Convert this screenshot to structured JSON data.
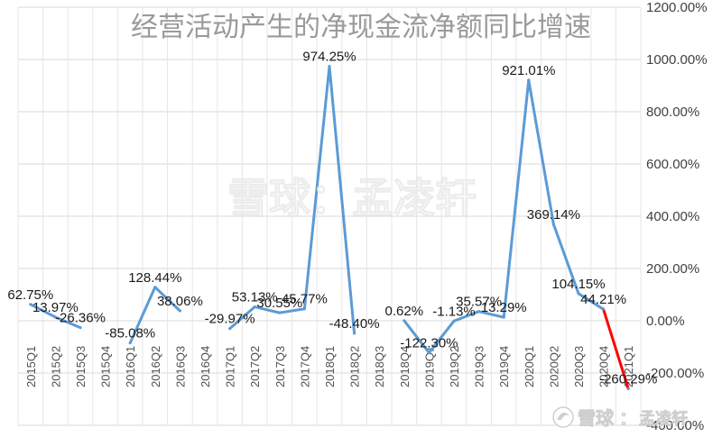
{
  "chart_data": {
    "type": "line",
    "title": "经营活动产生的净现金流净额同比增速",
    "categories": [
      "2015Q1",
      "2015Q2",
      "2015Q3",
      "2015Q4",
      "2016Q1",
      "2016Q2",
      "2016Q3",
      "2016Q4",
      "2017Q1",
      "2017Q2",
      "2017Q3",
      "2017Q4",
      "2018Q1",
      "2018Q2",
      "2018Q3",
      "2018Q4",
      "2019Q1",
      "2019Q2",
      "2019Q3",
      "2019Q4",
      "2020Q1",
      "2020Q2",
      "2020Q3",
      "2020Q4",
      "2021Q1"
    ],
    "series": [
      {
        "values": [
          62.75,
          13.97,
          -26.36,
          null,
          -85.08,
          128.44,
          38.06,
          null,
          -29.97,
          53.13,
          30.55,
          45.77,
          974.25,
          -48.4,
          null,
          0.62,
          -122.3,
          -1.13,
          35.57,
          13.29,
          921.01,
          369.14,
          104.15,
          44.21,
          -260.29
        ],
        "labels": [
          "62.75%",
          "13.97%",
          "-26.36%",
          "",
          "-85.08%",
          "128.44%",
          "38.06%",
          "",
          "-29.97%",
          "53.13%",
          "30.55%",
          "45.77%",
          "974.25%",
          "-48.40%",
          "",
          "0.62%",
          "-122.30%",
          "-1.13%",
          "35.57%",
          "13.29%",
          "921.01%",
          "369.14%",
          "104.15%",
          "44.21%",
          "-260.29%"
        ],
        "color": "#5b9bd5"
      }
    ],
    "highlight_segment_color": "#ff0000",
    "y_tick_labels": [
      "1200.00%",
      "1000.00%",
      "800.00%",
      "600.00%",
      "400.00%",
      "200.00%",
      "0.00%",
      "-200.00%",
      "-400.00%"
    ],
    "ylim": [
      -400,
      1200
    ],
    "grid": true,
    "legend": "none"
  },
  "watermarks": {
    "center": "雪球：孟凌轩",
    "corner_brand": "雪球",
    "corner_author": "孟凌轩"
  }
}
